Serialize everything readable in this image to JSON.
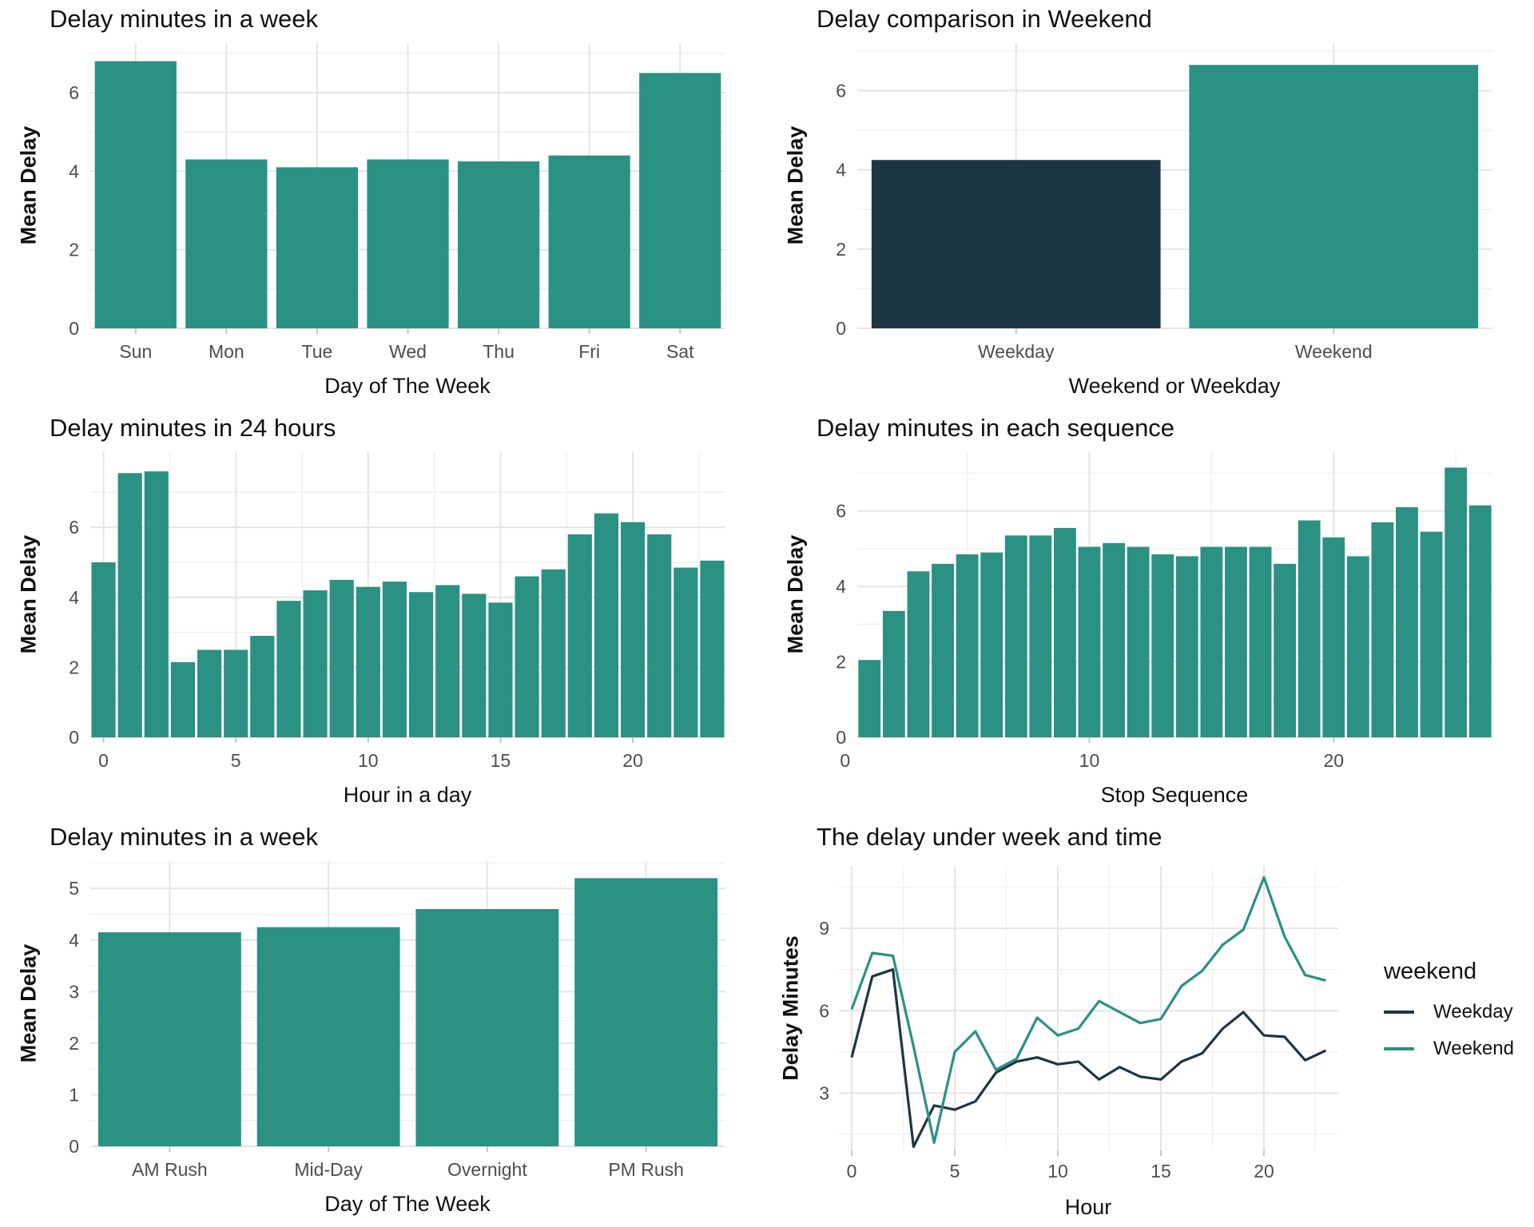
{
  "colors": {
    "teal": "#2a9183",
    "navy": "#1d3644",
    "tick_label": "#4d4d4d",
    "grid_major": "#e5e5e5",
    "grid_minor": "#f0f0f0",
    "text": "#111111",
    "background": "#ffffff"
  },
  "chart_data": [
    {
      "type": "bar",
      "title": "Delay minutes in a week",
      "xlabel": "Day of The Week",
      "ylabel": "Mean Delay",
      "categories": [
        "Sun",
        "Mon",
        "Tue",
        "Wed",
        "Thu",
        "Fri",
        "Sat"
      ],
      "values": [
        6.8,
        4.3,
        4.1,
        4.3,
        4.25,
        4.4,
        6.5
      ],
      "bar_color": "teal",
      "bar_frac": 0.9,
      "ylim": [
        0,
        7.26
      ],
      "yticks": [
        0,
        2,
        4,
        6
      ],
      "yminor": [
        1,
        3,
        5,
        7
      ],
      "grid": "on",
      "xgrid": "categories"
    },
    {
      "type": "bar",
      "title": "Delay comparison in Weekend",
      "xlabel": "Weekend or Weekday",
      "ylabel": "Mean Delay",
      "categories": [
        "Weekday",
        "Weekend"
      ],
      "values": [
        4.25,
        6.65
      ],
      "bar_colors": [
        "navy",
        "teal"
      ],
      "bar_frac": 0.91,
      "ylim": [
        0,
        7.2
      ],
      "yticks": [
        0,
        2,
        4,
        6
      ],
      "yminor": [
        1,
        3,
        5,
        7
      ],
      "grid": "on",
      "xgrid": "categories"
    },
    {
      "type": "bar",
      "title": "Delay minutes in 24 hours",
      "xlabel": "Hour in a day",
      "ylabel": "Mean Delay",
      "x": [
        0,
        1,
        2,
        3,
        4,
        5,
        6,
        7,
        8,
        9,
        10,
        11,
        12,
        13,
        14,
        15,
        16,
        17,
        18,
        19,
        20,
        21,
        22,
        23
      ],
      "values": [
        5.0,
        7.55,
        7.6,
        2.15,
        2.5,
        2.5,
        2.9,
        3.9,
        4.2,
        4.5,
        4.3,
        4.45,
        4.15,
        4.35,
        4.1,
        3.85,
        4.6,
        4.8,
        5.8,
        6.4,
        6.15,
        5.8,
        4.85,
        5.05
      ],
      "bar_color": "teal",
      "bar_frac": 0.91,
      "ylim": [
        0,
        8.15
      ],
      "yticks": [
        0,
        2,
        4,
        6
      ],
      "yminor": [
        1,
        3,
        5,
        7
      ],
      "grid": "on",
      "xticks": [
        {
          "label": "0",
          "slot": 0
        },
        {
          "label": "5",
          "slot": 5
        },
        {
          "label": "10",
          "slot": 10
        },
        {
          "label": "15",
          "slot": 15
        },
        {
          "label": "20",
          "slot": 20
        }
      ],
      "xminor_slots": [
        2.5,
        7.5,
        12.5,
        17.5,
        22.5
      ]
    },
    {
      "type": "bar",
      "title": "Delay minutes in each sequence",
      "xlabel": "Stop Sequence",
      "ylabel": "Mean Delay",
      "x": [
        1,
        2,
        3,
        4,
        5,
        6,
        7,
        8,
        9,
        10,
        11,
        12,
        13,
        14,
        15,
        16,
        17,
        18,
        19,
        20,
        21,
        22,
        23,
        24,
        25,
        26
      ],
      "values": [
        2.05,
        3.35,
        4.4,
        4.6,
        4.85,
        4.9,
        5.35,
        5.35,
        5.55,
        5.05,
        5.15,
        5.05,
        4.85,
        4.8,
        5.05,
        5.05,
        5.05,
        4.6,
        5.75,
        5.3,
        4.8,
        5.7,
        6.1,
        5.45,
        7.15,
        6.15
      ],
      "bar_color": "teal",
      "bar_frac": 0.91,
      "ylim": [
        0,
        7.56
      ],
      "yticks": [
        0,
        2,
        4,
        6
      ],
      "yminor": [
        1,
        3,
        5,
        7
      ],
      "grid": "on",
      "xticks": [
        {
          "label": "0",
          "slot": -1
        },
        {
          "label": "10",
          "slot": 9
        },
        {
          "label": "20",
          "slot": 19
        }
      ],
      "xminor_slots": [
        4,
        14,
        24
      ]
    },
    {
      "type": "bar",
      "title": "Delay minutes in a week",
      "xlabel": "Day of The Week",
      "ylabel": "Mean Delay",
      "categories": [
        "AM Rush",
        "Mid-Day",
        "Overnight",
        "PM Rush"
      ],
      "values": [
        4.15,
        4.25,
        4.6,
        5.2
      ],
      "bar_color": "teal",
      "bar_frac": 0.9,
      "ylim": [
        0,
        5.53
      ],
      "yticks": [
        0,
        1,
        2,
        3,
        4,
        5
      ],
      "yminor": [
        0.5,
        1.5,
        2.5,
        3.5,
        4.5,
        5.5
      ],
      "grid": "on",
      "xgrid": "categories"
    },
    {
      "type": "line",
      "title": "The delay under week and time",
      "xlabel": "Hour",
      "ylabel": "Delay Minutes",
      "x": [
        0,
        1,
        2,
        3,
        4,
        5,
        6,
        7,
        8,
        9,
        10,
        11,
        12,
        13,
        14,
        15,
        16,
        17,
        18,
        19,
        20,
        21,
        22,
        23
      ],
      "series": [
        {
          "name": "Weekday",
          "color": "navy",
          "values": [
            4.3,
            7.25,
            7.5,
            1.05,
            2.55,
            2.4,
            2.7,
            3.75,
            4.15,
            4.3,
            4.05,
            4.15,
            3.5,
            3.95,
            3.6,
            3.5,
            4.15,
            4.45,
            5.35,
            5.95,
            5.1,
            5.05,
            4.2,
            4.55
          ]
        },
        {
          "name": "Weekend",
          "color": "teal",
          "values": [
            6.05,
            8.1,
            8.0,
            4.7,
            1.2,
            4.5,
            5.25,
            3.85,
            4.25,
            5.75,
            5.1,
            5.35,
            6.35,
            5.95,
            5.55,
            5.7,
            6.9,
            7.45,
            8.4,
            8.95,
            10.85,
            8.7,
            7.3,
            7.1
          ]
        }
      ],
      "ylim": [
        0.92,
        11.27
      ],
      "yticks": [
        3,
        6,
        9
      ],
      "yminor": [
        1.5,
        4.5,
        7.5,
        10.5
      ],
      "xticks": [
        0,
        5,
        10,
        15,
        20
      ],
      "xminor": [
        2.5,
        7.5,
        12.5,
        17.5,
        22.5
      ],
      "grid": "on",
      "legend_title": "weekend",
      "legend_position": "right"
    }
  ]
}
